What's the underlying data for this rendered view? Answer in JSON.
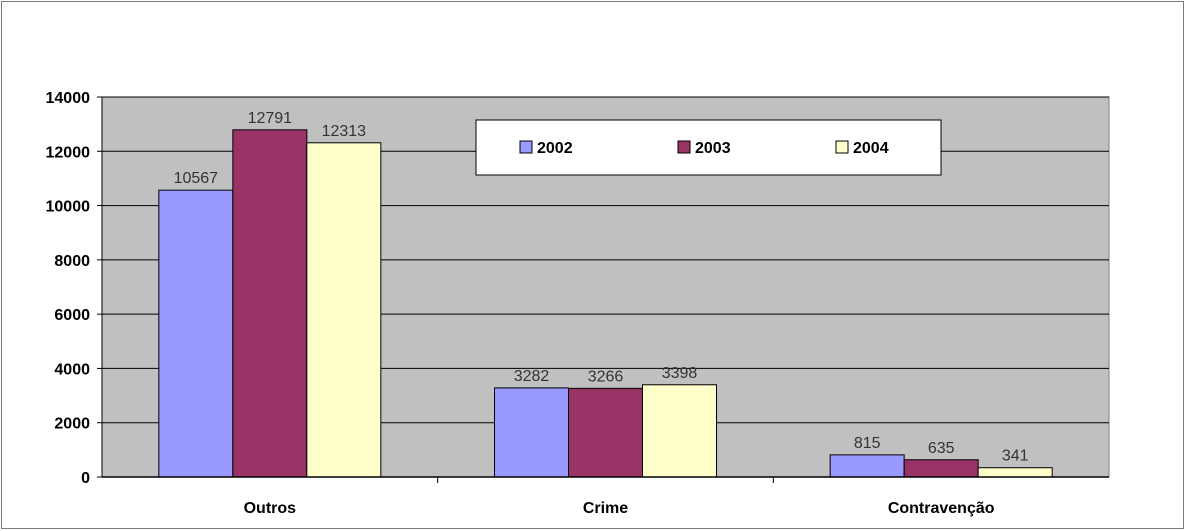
{
  "chart_data": {
    "type": "bar",
    "categories": [
      "Outros",
      "Crime",
      "Contravenção"
    ],
    "series": [
      {
        "name": "2002",
        "values": [
          10567,
          3282,
          815
        ],
        "color": "#9999ff"
      },
      {
        "name": "2003",
        "values": [
          12791,
          3266,
          635
        ],
        "color": "#993366"
      },
      {
        "name": "2004",
        "values": [
          12313,
          3398,
          341
        ],
        "color": "#ffffcc"
      }
    ],
    "ylim": [
      0,
      14000
    ],
    "yticks": [
      0,
      2000,
      4000,
      6000,
      8000,
      10000,
      12000,
      14000
    ],
    "grid": true,
    "plot_background": "#c0c0c0",
    "legend_position": "top-center",
    "data_labels": true,
    "title": "",
    "xlabel": "",
    "ylabel": ""
  }
}
